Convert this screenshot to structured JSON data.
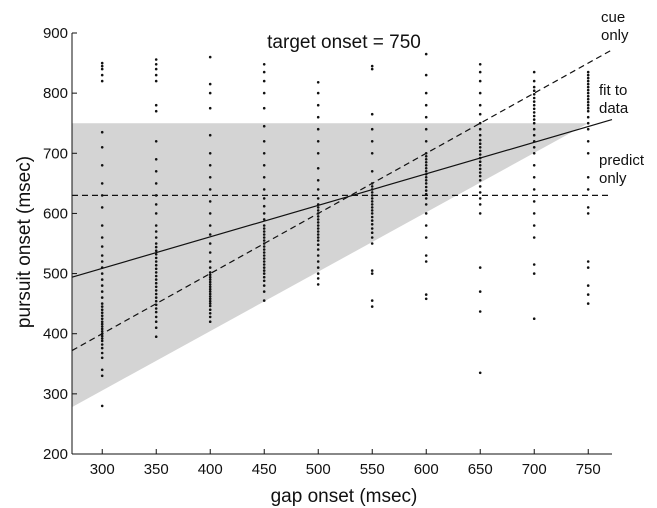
{
  "chart_data": {
    "type": "scatter",
    "title": "target onset = 750",
    "xlabel": "gap onset (msec)",
    "ylabel": "pursuit onset (msec)",
    "xlim": [
      272,
      772
    ],
    "ylim": [
      200,
      900
    ],
    "x_ticks": [
      "300",
      "350",
      "400",
      "450",
      "500",
      "550",
      "600",
      "650",
      "700",
      "750"
    ],
    "y_ticks": [
      "200",
      "300",
      "400",
      "500",
      "600",
      "700",
      "800",
      "900"
    ],
    "grid": false,
    "shaded_region": {
      "vertices": [
        [
          272,
          278
        ],
        [
          750,
          750
        ],
        [
          272,
          750
        ]
      ]
    },
    "lines": [
      {
        "name": "cue only",
        "style": "dashed",
        "x": [
          272,
          772
        ],
        "y": [
          372,
          872
        ]
      },
      {
        "name": "fit to data",
        "style": "solid",
        "x": [
          272,
          772
        ],
        "y": [
          494,
          756
        ]
      },
      {
        "name": "predict only",
        "style": "dashed",
        "x": [
          272,
          772
        ],
        "y": [
          630,
          630
        ]
      }
    ],
    "annotations": [
      {
        "lines": [
          "cue",
          "only"
        ]
      },
      {
        "lines": [
          "fit to",
          "data"
        ]
      },
      {
        "lines": [
          "predict",
          "only"
        ]
      }
    ],
    "scatter_columns": [
      {
        "x": 300,
        "values": [
          280,
          330,
          340,
          360,
          368,
          376,
          382,
          388,
          392,
          396,
          400,
          404,
          408,
          412,
          416,
          420,
          425,
          430,
          435,
          440,
          445,
          450,
          460,
          470,
          480,
          490,
          500,
          510,
          520,
          530,
          545,
          560,
          580,
          610,
          630,
          650,
          680,
          710,
          735,
          820,
          830,
          840,
          845,
          850
        ]
      },
      {
        "x": 350,
        "values": [
          395,
          410,
          420,
          428,
          436,
          442,
          448,
          454,
          460,
          466,
          472,
          478,
          484,
          490,
          496,
          502,
          508,
          514,
          520,
          526,
          532,
          538,
          544,
          550,
          560,
          570,
          580,
          600,
          615,
          630,
          650,
          670,
          690,
          720,
          770,
          780,
          820,
          830,
          840,
          848,
          856
        ]
      },
      {
        "x": 400,
        "values": [
          420,
          428,
          434,
          440,
          446,
          450,
          454,
          458,
          462,
          466,
          470,
          474,
          478,
          482,
          486,
          490,
          494,
          498,
          502,
          510,
          520,
          535,
          550,
          565,
          580,
          600,
          620,
          640,
          660,
          680,
          700,
          730,
          775,
          800,
          815,
          860
        ]
      },
      {
        "x": 450,
        "values": [
          455,
          470,
          480,
          488,
          494,
          500,
          505,
          510,
          515,
          520,
          525,
          530,
          535,
          540,
          545,
          550,
          555,
          560,
          565,
          570,
          575,
          580,
          590,
          600,
          612,
          625,
          640,
          660,
          680,
          700,
          720,
          745,
          775,
          800,
          820,
          835,
          848
        ]
      },
      {
        "x": 500,
        "values": [
          482,
          492,
          500,
          510,
          520,
          530,
          540,
          548,
          555,
          560,
          565,
          570,
          575,
          580,
          585,
          590,
          595,
          600,
          605,
          610,
          615,
          625,
          640,
          655,
          675,
          700,
          720,
          740,
          760,
          780,
          800,
          818
        ]
      },
      {
        "x": 550,
        "values": [
          445,
          455,
          500,
          505,
          550,
          560,
          568,
          575,
          582,
          588,
          594,
          600,
          605,
          610,
          615,
          620,
          625,
          630,
          635,
          640,
          645,
          650,
          670,
          700,
          720,
          740,
          765,
          840,
          845
        ]
      },
      {
        "x": 600,
        "values": [
          458,
          465,
          520,
          530,
          560,
          580,
          600,
          615,
          625,
          632,
          638,
          644,
          650,
          655,
          660,
          665,
          670,
          675,
          680,
          685,
          690,
          695,
          700,
          720,
          740,
          760,
          780,
          800,
          830,
          865
        ]
      },
      {
        "x": 650,
        "values": [
          335,
          437,
          470,
          510,
          600,
          615,
          625,
          635,
          645,
          655,
          662,
          668,
          674,
          680,
          686,
          692,
          698,
          704,
          710,
          716,
          722,
          730,
          740,
          750,
          765,
          780,
          800,
          820,
          835,
          848
        ]
      },
      {
        "x": 700,
        "values": [
          425,
          500,
          515,
          560,
          580,
          600,
          620,
          640,
          660,
          680,
          700,
          710,
          720,
          730,
          740,
          750,
          756,
          762,
          768,
          774,
          780,
          786,
          792,
          798,
          804,
          810,
          820,
          835
        ]
      },
      {
        "x": 750,
        "values": [
          450,
          465,
          480,
          510,
          520,
          600,
          610,
          640,
          660,
          700,
          720,
          740,
          750,
          760,
          770,
          775,
          780,
          785,
          790,
          795,
          800,
          805,
          810,
          815,
          820,
          825,
          830,
          835
        ]
      }
    ]
  }
}
